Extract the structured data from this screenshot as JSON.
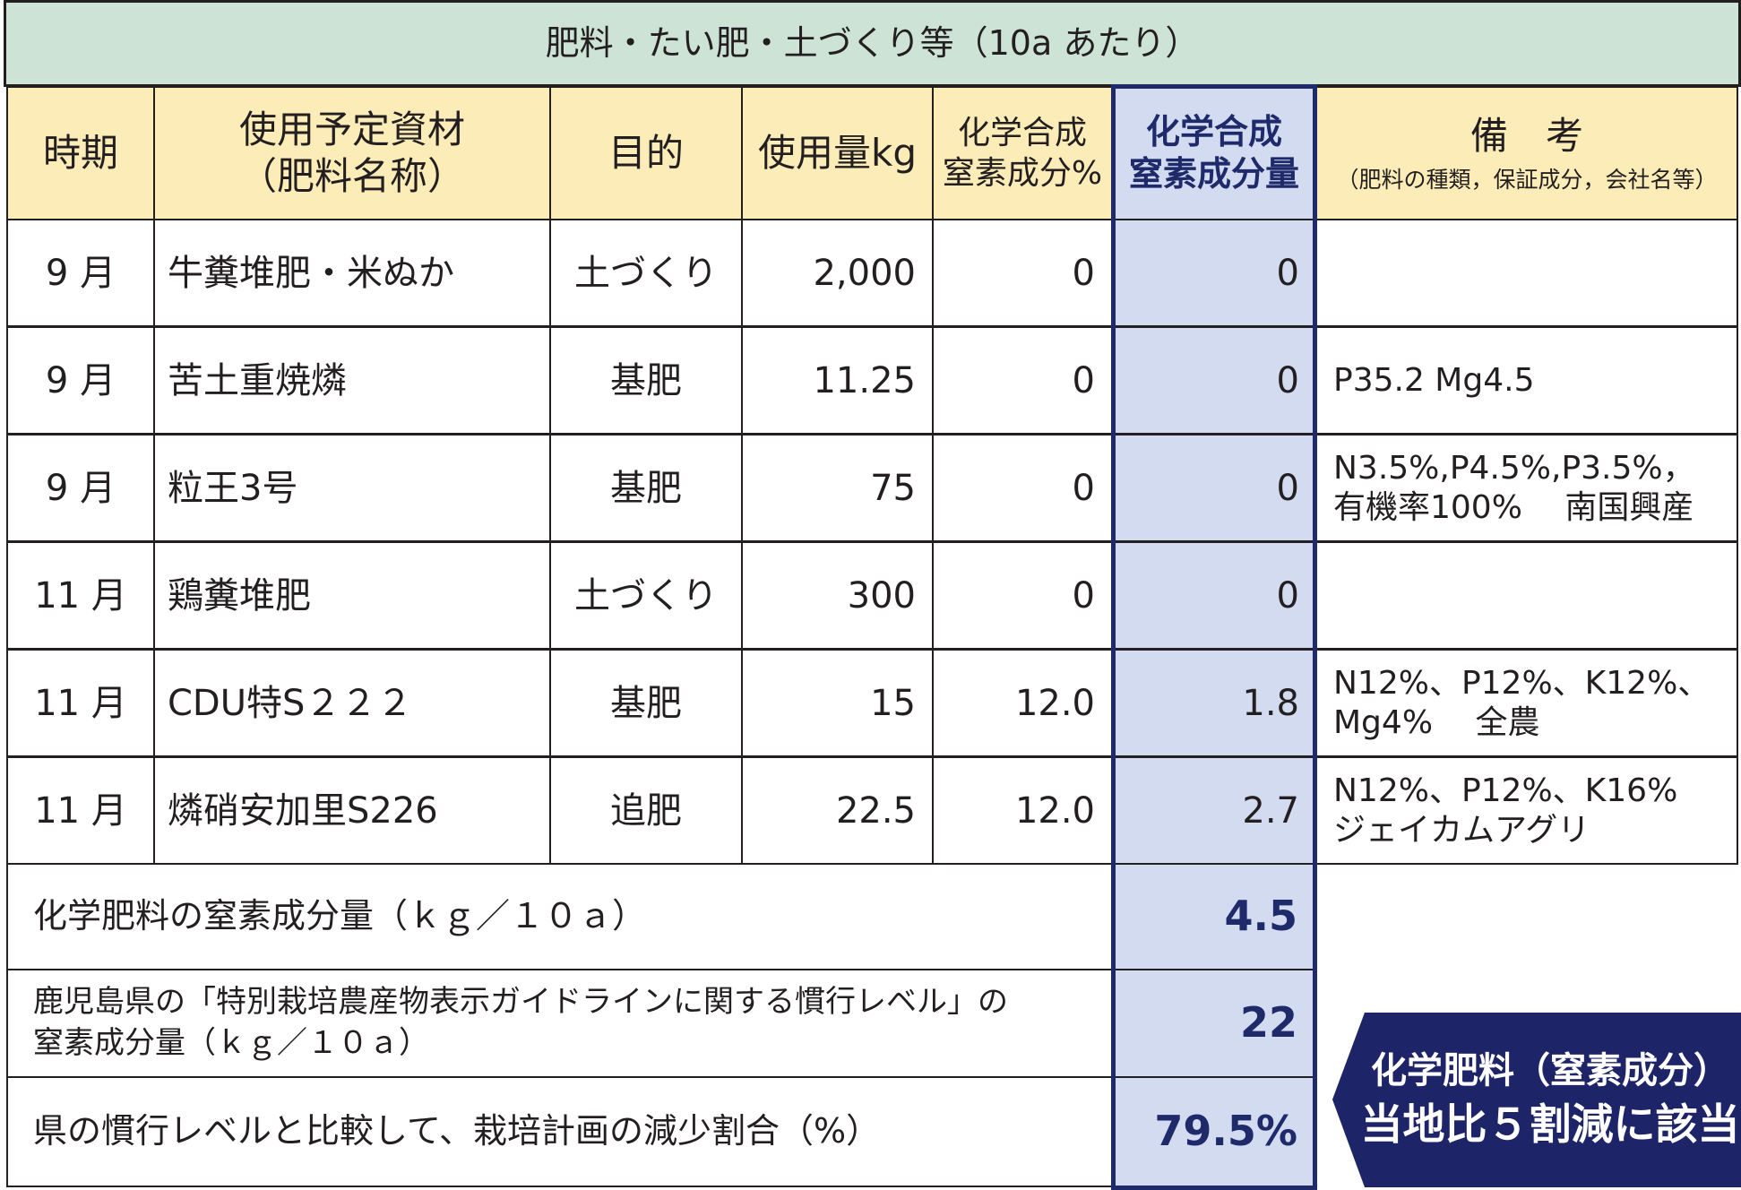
{
  "title": "肥料・たい肥・土づくり等（10a あたり）",
  "headers": {
    "period": "時期",
    "material_line1": "使用予定資材",
    "material_line2": "（肥料名称）",
    "purpose": "目的",
    "amount": "使用量kg",
    "n_pct_line1": "化学合成",
    "n_pct_line2": "窒素成分%",
    "n_amt_line1": "化学合成",
    "n_amt_line2": "窒素成分量",
    "remarks_line1": "備　考",
    "remarks_line2": "（肥料の種類，保証成分，会社名等）"
  },
  "rows": [
    {
      "period": "9 月",
      "material": "牛糞堆肥・米ぬか",
      "purpose": "土づくり",
      "amount": "2,000",
      "n_pct": "0",
      "n_amt": "0",
      "remarks_line1": "",
      "remarks_line2": ""
    },
    {
      "period": "9 月",
      "material": "苦土重焼燐",
      "purpose": "基肥",
      "amount": "11.25",
      "n_pct": "0",
      "n_amt": "0",
      "remarks_line1": "P35.2 Mg4.5",
      "remarks_line2": ""
    },
    {
      "period": "9 月",
      "material": "粒王3号",
      "purpose": "基肥",
      "amount": "75",
      "n_pct": "0",
      "n_amt": "0",
      "remarks_line1": "N3.5%,P4.5%,P3.5%，",
      "remarks_line2": "有機率100%　 南国興産"
    },
    {
      "period": "11 月",
      "material": "鶏糞堆肥",
      "purpose": "土づくり",
      "amount": "300",
      "n_pct": "0",
      "n_amt": "0",
      "remarks_line1": "",
      "remarks_line2": ""
    },
    {
      "period": "11 月",
      "material": "CDU特S２２２",
      "purpose": "基肥",
      "amount": "15",
      "n_pct": "12.0",
      "n_amt": "1.8",
      "remarks_line1": "N12%、P12%、K12%、",
      "remarks_line2": "Mg4%　 全農"
    },
    {
      "period": "11 月",
      "material": "燐硝安加里S226",
      "purpose": "追肥",
      "amount": "22.5",
      "n_pct": "12.0",
      "n_amt": "2.7",
      "remarks_line1": "N12%、P12%、K16%",
      "remarks_line2": "ジェイカムアグリ"
    }
  ],
  "summary": {
    "row1_label": "化学肥料の窒素成分量（ｋｇ／１０ａ）",
    "row1_value": "4.5",
    "row2_label_line1": "鹿児島県の「特別栽培農産物表示ガイドラインに関する慣行レベル」の",
    "row2_label_line2": "窒素成分量（ｋｇ／１０ａ）",
    "row2_value": "22",
    "row3_label": "県の慣行レベルと比較して、栽培計画の減少割合（%）",
    "row3_value": "79.5%"
  },
  "callout": {
    "line1": "化学肥料（窒素成分）",
    "line2": "当地比５割減に該当"
  },
  "colors": {
    "title_bg": "#cde3d6",
    "header_bg": "#fbecb8",
    "highlight_bg": "#d2dbf0",
    "navy": "#1f2a6b",
    "callout_bg": "#1e2468"
  }
}
